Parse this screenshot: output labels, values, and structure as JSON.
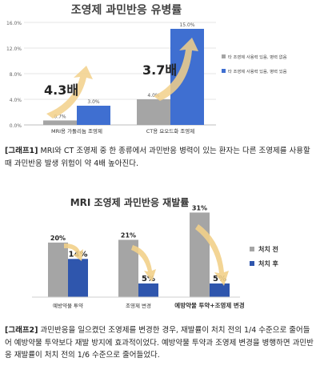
{
  "chart_data": [
    {
      "type": "bar",
      "title": "조영제 과민반응 유병률",
      "categories": [
        "MRI용 가돌리늄 조영제",
        "CT용 요오드화 조영제"
      ],
      "series": [
        {
          "name": "타 조영제 사용력 있음, 병력 없음",
          "values": [
            0.7,
            4.0
          ],
          "labels": [
            "0.7%",
            "4.0%"
          ],
          "color": "#a5a5a5"
        },
        {
          "name": "타 조영제 사용력 있음, 병력 있음",
          "values": [
            3.0,
            15.0
          ],
          "labels": [
            "3.0%",
            "15.0%"
          ],
          "color": "#3f6fd1"
        }
      ],
      "yticks": [
        "0.0%",
        "4.0%",
        "8.0%",
        "12.0%",
        "16.0%"
      ],
      "ylim": [
        0,
        16
      ],
      "grid": true,
      "legend": "right",
      "annotations": [
        "4.3배",
        "3.7배"
      ]
    },
    {
      "type": "bar",
      "title": "MRI 조영제 과민반응 재발률",
      "categories": [
        "예방약물 투약",
        "조영제 변경",
        "예방약물 투약+조영제 변경"
      ],
      "series": [
        {
          "name": "처치 전",
          "values": [
            20,
            21,
            31
          ],
          "labels": [
            "20%",
            "21%",
            "31%"
          ],
          "color": "#a5a5a5"
        },
        {
          "name": "처치 후",
          "values": [
            14,
            5,
            5
          ],
          "labels": [
            "14%",
            "5%",
            "5%"
          ],
          "color": "#2f56ad"
        }
      ],
      "ylim": [
        0,
        32
      ],
      "grid": false,
      "legend": "right"
    }
  ],
  "captions": [
    {
      "tag": "[그래프1]",
      "text": " MRI와 CT 조영제 중 한 종류에서 과민반응 병력이 있는 환자는 다른 조영제를 사용할 때 과민반응 발생 위험이 약 4배 높아진다."
    },
    {
      "tag": "[그래프2]",
      "text": " 과민반응을 일으켰던 조영제를 변경한 경우, 재발률이 처치 전의 1/4 수준으로 줄어들어 예방약물 투약보다 재발 방지에 효과적이었다. 예방약물 투약과 조영제 변경을 병행하면 과민반응 재발률이 처치 전의 1/6 수준으로 줄어들었다."
    }
  ]
}
